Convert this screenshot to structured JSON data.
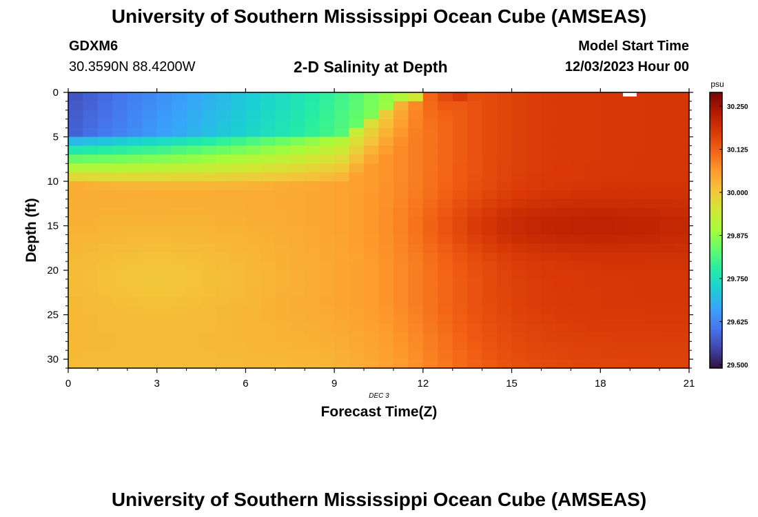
{
  "title": "University of Southern Mississippi Ocean Cube (AMSEAS)",
  "footer_title": "University of Southern Mississippi Ocean Cube (AMSEAS)",
  "header": {
    "station": "GDXM6",
    "coordinates": "30.3590N  88.4200W",
    "subtitle": "2-D Salinity at Depth",
    "model_start_label": "Model Start Time",
    "model_start_value": "12/03/2023 Hour 00"
  },
  "chart_data": {
    "type": "heatmap",
    "title": "2-D Salinity at Depth",
    "xlabel": "Forecast Time(Z)",
    "ylabel": "Depth (ft)",
    "date_label": "DEC 3",
    "xlim": [
      0,
      21
    ],
    "ylim": [
      0,
      31
    ],
    "x_ticks": [
      0,
      3,
      6,
      9,
      12,
      15,
      18,
      21
    ],
    "y_ticks": [
      0,
      5,
      10,
      15,
      20,
      25,
      30
    ],
    "colorbar": {
      "unit": "psu",
      "range": [
        29.49,
        30.29
      ],
      "ticks": [
        "29.500",
        "29.625",
        "29.750",
        "29.875",
        "30.000",
        "30.125",
        "30.250"
      ],
      "colors": [
        "#30123b",
        "#4145ab",
        "#4675ed",
        "#39a2fc",
        "#1bcfd4",
        "#24eca6",
        "#61fc6c",
        "#a4fc3b",
        "#d1e834",
        "#f3c63a",
        "#fe9b2d",
        "#f36315",
        "#d93806",
        "#b11901",
        "#7a0402"
      ]
    },
    "grid": {
      "x_step_hours": 0.5,
      "depth_step_ft": 1
    },
    "salinity_psu": {
      "surface_layer": {
        "start_hour": 0,
        "start": 29.56,
        "mid": 29.82,
        "end": 29.9
      },
      "shallow_blue_depth_ft": [
        5,
        11
      ],
      "mid_column": {
        "start": 30.04,
        "min_hour_3": 30.0,
        "hour_9": 30.08,
        "hour_15": 30.14,
        "hour_21": 30.16
      },
      "subsurface_max_hour_15_depth_15": 30.18,
      "surface_max_hour_21": 30.27,
      "bottom_layer": {
        "start": 30.04,
        "hour_21": 30.14
      }
    }
  }
}
